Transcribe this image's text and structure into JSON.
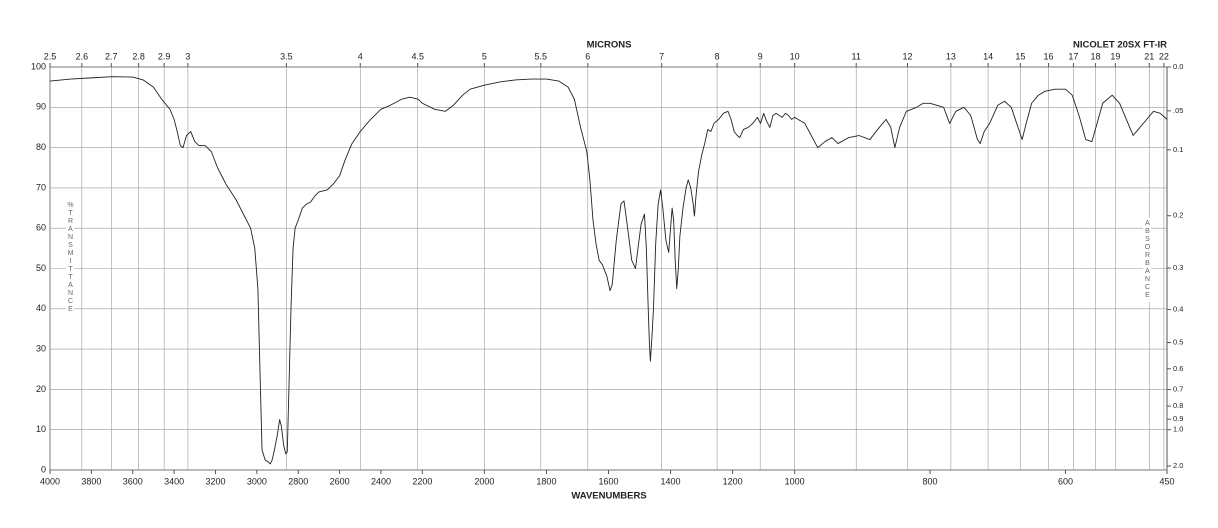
{
  "chart_data": {
    "type": "line",
    "title": "NICOLET 20SX FT-IR",
    "xlabel": "WAVENUMBERS",
    "x2label": "MICRONS",
    "ylabel": "%TRANSMITTANCE",
    "y2label": "ABSORBANCE",
    "color": "#222222",
    "grid": true,
    "xlim": [
      4000,
      450
    ],
    "xscale": "piecewise",
    "xbreaks": [
      2200,
      1000
    ],
    "xticks": [
      4000,
      3800,
      3600,
      3400,
      3200,
      3000,
      2800,
      2600,
      2400,
      2200,
      2000,
      1800,
      1600,
      1400,
      1200,
      1000,
      800,
      600,
      450
    ],
    "x2scale": "microns",
    "x2ticks": [
      2.5,
      2.6,
      2.7,
      2.8,
      2.9,
      3,
      3.5,
      4,
      4.5,
      5,
      5.5,
      6,
      7,
      8,
      9,
      10,
      11,
      12,
      13,
      14,
      15,
      16,
      17,
      18,
      19,
      21,
      22
    ],
    "ylim": [
      0,
      100
    ],
    "yticks": [
      0,
      10,
      20,
      30,
      40,
      50,
      60,
      70,
      80,
      90,
      100
    ],
    "y2scale": "absorbance",
    "y2ticks": [
      {
        "value": 0,
        "label": "0.0"
      },
      {
        "value": 0.05,
        "label": ".05"
      },
      0.1,
      0.2,
      0.3,
      0.4,
      0.5,
      0.6,
      0.7,
      0.8,
      0.9,
      {
        "value": 1,
        "label": "1.0"
      },
      {
        "value": 2,
        "label": "2.0"
      }
    ],
    "x": [
      4000,
      3900,
      3800,
      3700,
      3600,
      3550,
      3500,
      3460,
      3420,
      3400,
      3385,
      3370,
      3357,
      3340,
      3320,
      3300,
      3280,
      3250,
      3220,
      3190,
      3150,
      3100,
      3060,
      3030,
      3010,
      2995,
      2985,
      2975,
      2960,
      2945,
      2935,
      2926,
      2915,
      2900,
      2890,
      2882,
      2870,
      2860,
      2853,
      2845,
      2835,
      2825,
      2815,
      2800,
      2780,
      2760,
      2740,
      2720,
      2700,
      2660,
      2630,
      2600,
      2573,
      2540,
      2500,
      2450,
      2400,
      2355,
      2300,
      2260,
      2220,
      2200,
      2160,
      2126,
      2100,
      2070,
      2046,
      2000,
      1950,
      1900,
      1850,
      1800,
      1760,
      1730,
      1710,
      1690,
      1670,
      1660,
      1650,
      1640,
      1630,
      1620,
      1605,
      1595,
      1588,
      1575,
      1560,
      1550,
      1540,
      1525,
      1513,
      1505,
      1495,
      1484,
      1478,
      1472,
      1468,
      1465,
      1460,
      1455,
      1448,
      1440,
      1432,
      1425,
      1415,
      1406,
      1400,
      1395,
      1390,
      1385,
      1380,
      1375,
      1370,
      1360,
      1350,
      1343,
      1335,
      1327,
      1323,
      1318,
      1310,
      1300,
      1290,
      1280,
      1270,
      1260,
      1245,
      1230,
      1215,
      1205,
      1195,
      1185,
      1177,
      1165,
      1150,
      1135,
      1120,
      1110,
      1100,
      1090,
      1080,
      1070,
      1060,
      1050,
      1040,
      1030,
      1020,
      1010,
      1000,
      985,
      966,
      955,
      945,
      936,
      920,
      905,
      889,
      875,
      865,
      858,
      852,
      845,
      835,
      820,
      810,
      800,
      790,
      780,
      771,
      762,
      750,
      740,
      730,
      726,
      720,
      712,
      700,
      690,
      680,
      672,
      664,
      658,
      650,
      640,
      630,
      615,
      600,
      590,
      580,
      570,
      561,
      555,
      545,
      531,
      520,
      510,
      500,
      490,
      480,
      470,
      460,
      450
    ],
    "values": [
      96.5,
      97,
      97.3,
      97.6,
      97.5,
      96.8,
      95,
      92,
      89.5,
      87,
      84,
      80.5,
      80,
      83,
      84,
      81.5,
      80.5,
      80.5,
      79,
      75,
      71,
      67,
      63,
      60,
      55,
      45,
      25,
      5,
      2.5,
      2,
      1.5,
      2.5,
      5,
      9,
      12.5,
      11,
      6,
      4,
      4.5,
      20,
      40,
      55,
      60,
      62,
      65,
      66,
      66.5,
      68,
      69,
      69.5,
      71,
      73,
      77,
      81,
      84,
      87,
      89.5,
      90.5,
      92,
      92.5,
      92,
      91,
      89.5,
      89,
      90.5,
      93,
      94.5,
      95.5,
      96.3,
      96.8,
      97,
      97,
      96.5,
      95,
      92,
      85,
      79,
      72,
      62,
      56,
      52,
      51,
      48,
      44.5,
      46,
      57,
      66,
      66.8,
      61,
      52,
      50,
      55,
      61,
      63.5,
      55,
      40,
      31,
      27,
      33,
      40,
      56,
      66,
      69.5,
      65,
      57,
      54,
      60,
      65,
      62,
      52,
      45,
      50,
      58,
      65,
      70,
      72,
      70,
      66,
      63,
      68,
      74,
      78,
      81,
      84.5,
      84,
      86,
      87,
      88.5,
      89,
      87,
      84,
      83,
      82.5,
      84.5,
      85,
      86,
      87.5,
      86,
      88.5,
      86.5,
      85,
      88,
      88.5,
      88,
      87.5,
      88.5,
      88,
      87,
      87.5,
      86,
      80,
      81.5,
      82.5,
      81,
      82.5,
      83,
      82,
      85,
      87,
      85,
      80,
      85,
      89,
      90,
      91,
      91,
      90.5,
      90,
      86,
      89,
      90,
      88,
      82,
      81,
      84,
      86,
      90.5,
      91.5,
      90,
      86,
      82,
      86,
      91,
      93,
      94,
      94.5,
      94.5,
      93,
      88,
      82,
      81.5,
      85,
      91,
      93,
      91,
      87,
      83,
      85,
      87,
      89,
      88.5,
      87
    ]
  }
}
